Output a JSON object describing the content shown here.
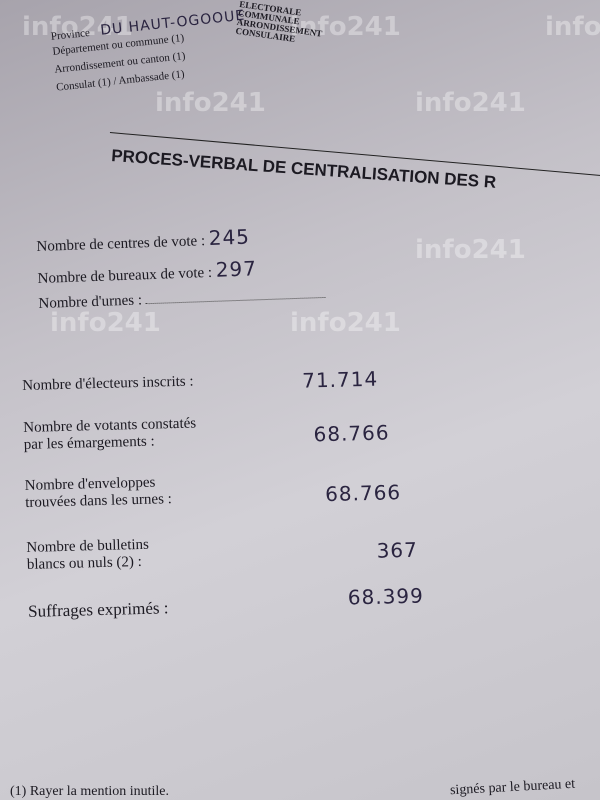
{
  "watermark": "info241",
  "header": {
    "stamp_lines": [
      "ELECTORALE",
      "COMMUNALE",
      "ARRONDISSEMENT",
      "CONSULAIRE"
    ],
    "fields": [
      {
        "label": "Province",
        "value": "DU HAUT-OGOOUE"
      },
      {
        "label": "Département ou commune (1)",
        "value": ""
      },
      {
        "label": "Arrondissement ou canton (1)",
        "value": ""
      },
      {
        "label": "Consulat (1) / Ambassade (1)",
        "value": ""
      }
    ]
  },
  "title": "PROCES-VERBAL DE CENTRALISATION DES R",
  "counts": [
    {
      "label": "Nombre de centres de vote :",
      "value": "245"
    },
    {
      "label": "Nombre de bureaux de vote :",
      "value": "297"
    },
    {
      "label": "Nombre d'urnes :",
      "value": ""
    }
  ],
  "results": [
    {
      "label": "Nombre d'électeurs inscrits :",
      "value": "71.714"
    },
    {
      "label1": "Nombre de votants constatés",
      "label2": "par les émargements :",
      "value": "68.766"
    },
    {
      "label1": "Nombre d'enveloppes",
      "label2": "trouvées dans les urnes :",
      "value": "68.766"
    },
    {
      "label1": "Nombre de bulletins",
      "label2": "blancs ou nuls (2) :",
      "value": "367"
    },
    {
      "label": "Suffrages exprimés :",
      "value": "68.399"
    }
  ],
  "footer": {
    "left": "(1) Rayer la mention inutile.",
    "right": "signés par le bureau et"
  }
}
